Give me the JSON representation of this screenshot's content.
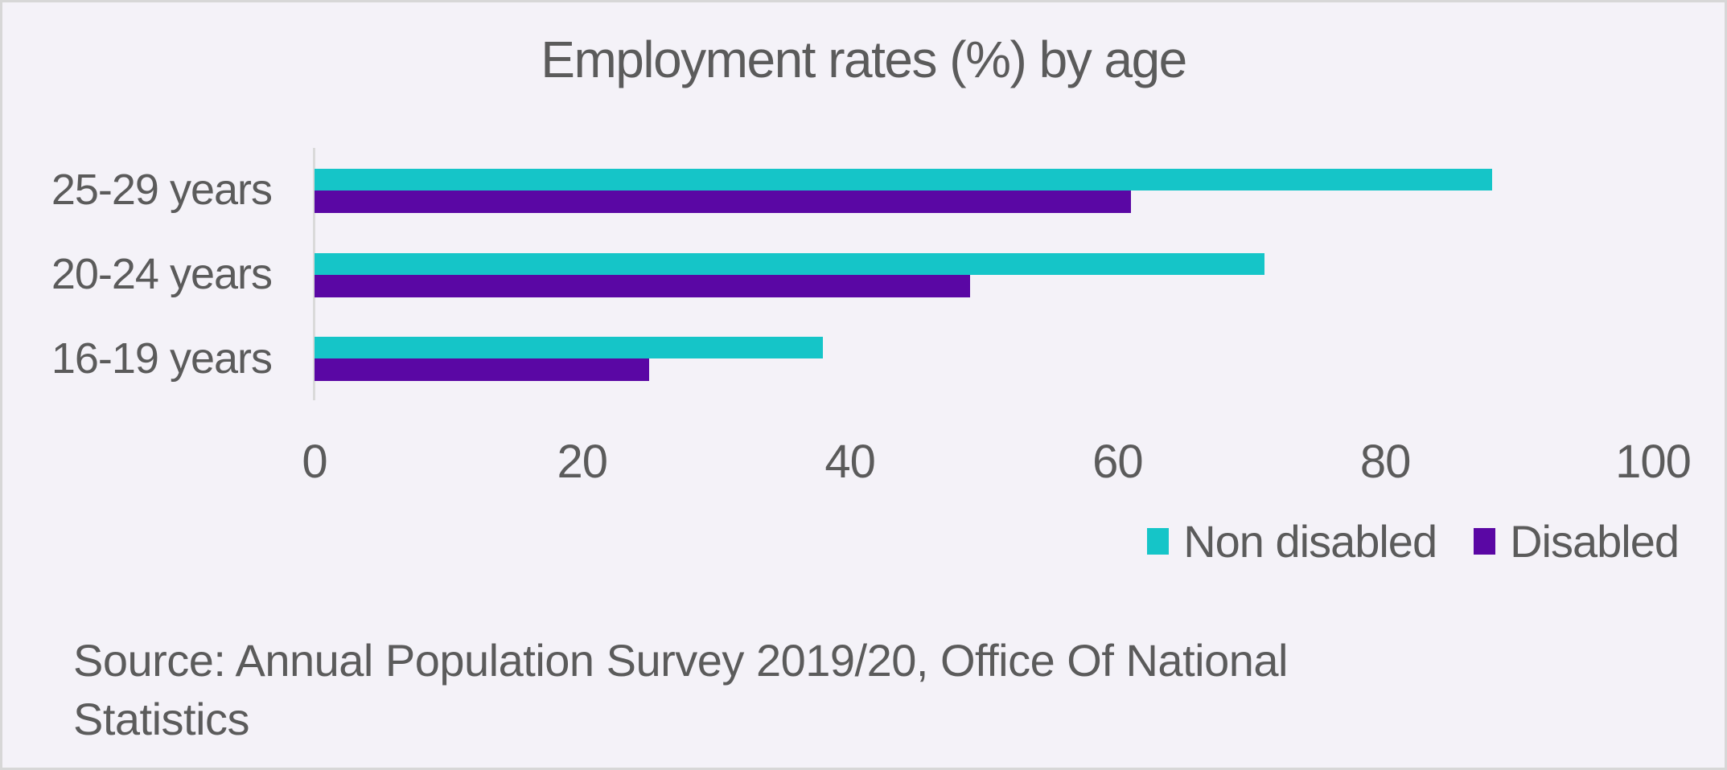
{
  "title": "Employment rates (%) by age",
  "colors": {
    "non_disabled": "#15c5c8",
    "disabled": "#5a07a4",
    "text": "#5b5b5b",
    "axis_line": "#dadada",
    "background": "#f4f2f8",
    "border": "#d7d7d7"
  },
  "legend": {
    "items": [
      {
        "label": "Non disabled",
        "color": "#15c5c8"
      },
      {
        "label": "Disabled",
        "color": "#5a07a4"
      }
    ]
  },
  "source": {
    "lines": [
      "Source: Annual Population Survey 2019/20, Office Of National",
      "Statistics"
    ]
  },
  "chart_data": {
    "type": "bar",
    "orientation": "horizontal",
    "title": "Employment rates (%) by age",
    "categories": [
      "25-29 years",
      "20-24 years",
      "16-19 years"
    ],
    "series": [
      {
        "name": "Non disabled",
        "color": "#15c5c8",
        "values": [
          88,
          71,
          38
        ]
      },
      {
        "name": "Disabled",
        "color": "#5a07a4",
        "values": [
          61,
          49,
          25
        ]
      }
    ],
    "xlim": [
      0,
      100
    ],
    "x_ticks": [
      0,
      20,
      40,
      60,
      80,
      100
    ],
    "xlabel": "",
    "ylabel": "",
    "grid": false,
    "legend_position": "bottom-right",
    "source": "Source: Annual Population Survey 2019/20, Office Of National Statistics"
  }
}
